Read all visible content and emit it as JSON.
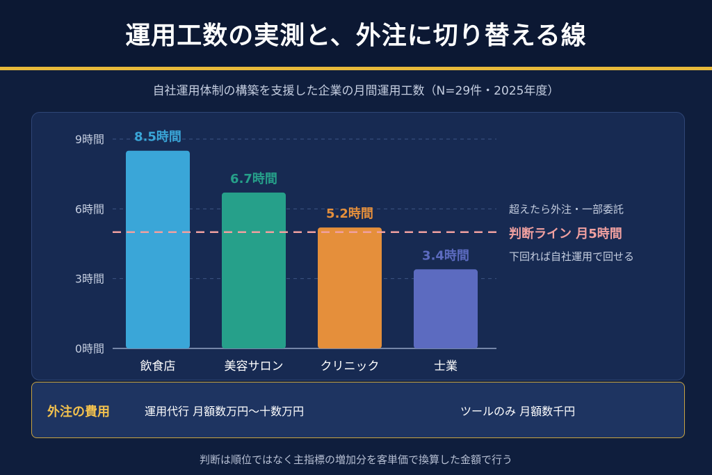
{
  "title": "運用工数の実測と、外注に切り替える線",
  "subtitle": "自社運用体制の構築を支援した企業の月間運用工数（N=29件・2025年度）",
  "chart_data": {
    "type": "bar",
    "categories": [
      "飲食店",
      "美容サロン",
      "クリニック",
      "士業"
    ],
    "values": [
      8.5,
      6.7,
      5.2,
      3.4
    ],
    "value_labels": [
      "8.5時間",
      "6.7時間",
      "5.2時間",
      "3.4時間"
    ],
    "colors": [
      "#3aa6d8",
      "#26a08a",
      "#e58f3b",
      "#5c6bc0"
    ],
    "yticks": [
      0,
      3,
      6,
      9
    ],
    "ytick_labels": [
      "0時間",
      "3時間",
      "6時間",
      "9時間"
    ],
    "ylim": [
      0,
      9
    ],
    "grid": true,
    "threshold": {
      "value": 5,
      "color": "#f0a0a0",
      "above_text": "超えたら外注・一部委託",
      "label": "判断ライン 月5時間",
      "below_text": "下回れば自社運用で回せる"
    }
  },
  "cost": {
    "label": "外注の費用",
    "item1": "運用代行 月額数万円〜十数万円",
    "item2": "ツールのみ 月額数千円"
  },
  "footer": "判断は順位ではなく主指標の増加分を客単価で換算した金額で行う"
}
